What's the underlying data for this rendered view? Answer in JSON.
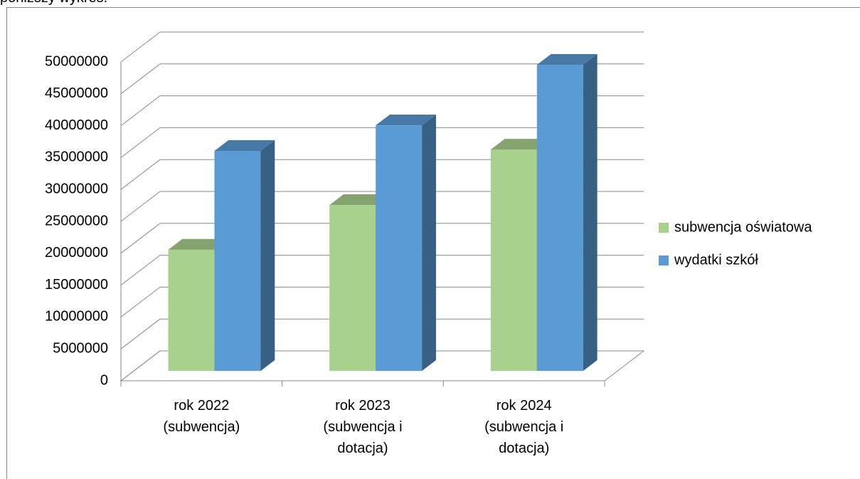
{
  "intro": "poniższy wykres.",
  "chart_data": {
    "type": "bar3d",
    "categories": [
      "rok 2022 (subwencja)",
      "rok 2023 (subwencja i dotacja)",
      "rok 2024 (subwencja i dotacja)"
    ],
    "series": [
      {
        "name": "subwencja oświatowa",
        "color": "#a9d18e",
        "values": [
          19000000,
          26000000,
          34700000
        ]
      },
      {
        "name": "wydatki szkół",
        "color": "#5b9bd5",
        "values": [
          34500000,
          38500000,
          48000000
        ]
      }
    ],
    "ylim": [
      0,
      50000000
    ],
    "yticks": [
      0,
      5000000,
      10000000,
      15000000,
      20000000,
      25000000,
      30000000,
      35000000,
      40000000,
      45000000,
      50000000
    ],
    "grid": true,
    "legend": "right"
  }
}
